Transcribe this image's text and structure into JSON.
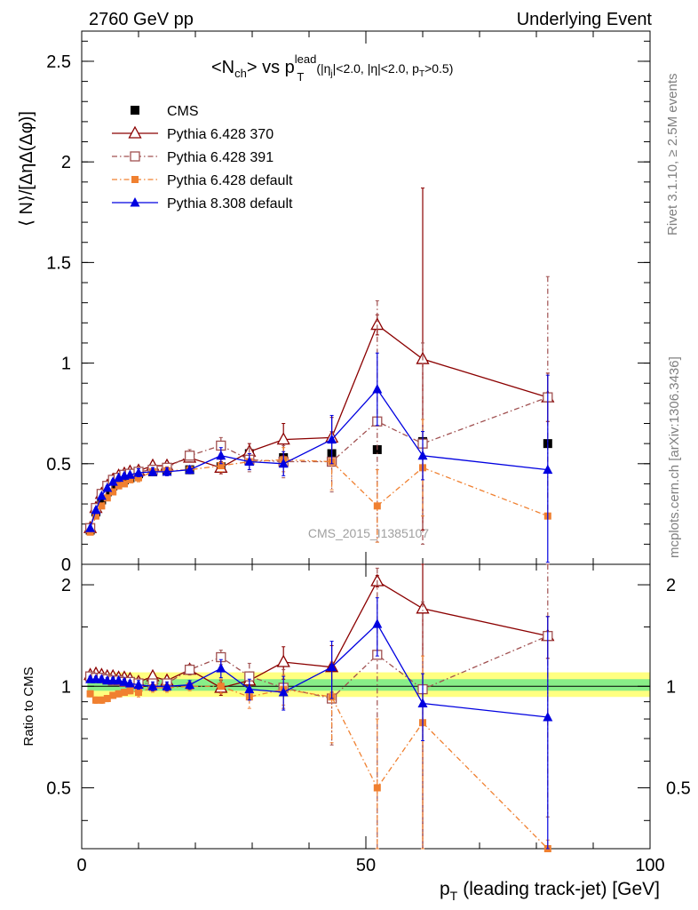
{
  "header": {
    "left": "2760 GeV pp",
    "right": "Underlying Event"
  },
  "side_labels": {
    "top": "Rivet 3.1.10, ≥ 2.5M events",
    "bottom": "mcplots.cern.ch [arXiv:1306.3436]"
  },
  "watermark": "CMS_2015_I1385107",
  "plot_title": {
    "main": "<N",
    "main_sub": "ch",
    "main_mid": "> vs p",
    "main_sup": "lead",
    "main_sub2": "T",
    "cuts": "(|η",
    "cuts_sub": "j",
    "cuts_mid": "|<2.0, |η|<2.0, p",
    "cuts_sub2": "T",
    "cuts_end": ">0.5)"
  },
  "chart_data": [
    {
      "type": "scatter",
      "panel": "main",
      "ylabel": "⟨ N⟩/[ΔηΔ(Δφ)]",
      "xlim": [
        0,
        100
      ],
      "ylim": [
        0,
        2.65
      ],
      "yticks": [
        0,
        0.5,
        1,
        1.5,
        2,
        2.5
      ],
      "ytick_labels": [
        "0",
        "0.5",
        "1",
        "1.5",
        "2",
        "2.5"
      ],
      "legend_position": "top-left",
      "series": [
        {
          "name": "CMS",
          "color": "#000000",
          "marker": "square",
          "line": "none",
          "x": [
            1.5,
            2.5,
            3.5,
            4.5,
            5.5,
            6.5,
            7.5,
            8.5,
            10,
            12.5,
            15,
            19,
            24.5,
            29.5,
            35.5,
            44,
            52,
            60,
            82
          ],
          "y": [
            0.17,
            0.26,
            0.32,
            0.36,
            0.39,
            0.41,
            0.42,
            0.43,
            0.45,
            0.46,
            0.465,
            0.47,
            0.485,
            0.55,
            0.53,
            0.55,
            0.57,
            0.61,
            0.6
          ]
        },
        {
          "name": "Pythia 6.428 370",
          "color": "#8b0000",
          "marker": "triangle-open",
          "line": "solid",
          "x": [
            1.5,
            2.5,
            3.5,
            4.5,
            5.5,
            6.5,
            7.5,
            8.5,
            10,
            12.5,
            15,
            19,
            24.5,
            29.5,
            35.5,
            44,
            52,
            60,
            82
          ],
          "y": [
            0.18,
            0.28,
            0.35,
            0.39,
            0.42,
            0.44,
            0.45,
            0.46,
            0.465,
            0.49,
            0.49,
            0.53,
            0.48,
            0.56,
            0.62,
            0.63,
            1.19,
            1.02,
            0.83
          ],
          "err": [
            0.01,
            0.01,
            0.01,
            0.01,
            0.01,
            0.01,
            0.01,
            0.01,
            0.02,
            0.02,
            0.02,
            0.02,
            0.03,
            0.04,
            0.08,
            0.1,
            0.05,
            0.85,
            0.12
          ]
        },
        {
          "name": "Pythia 6.428 391",
          "color": "#a05050",
          "marker": "square-open",
          "line": "dashdot",
          "x": [
            1.5,
            2.5,
            3.5,
            4.5,
            5.5,
            6.5,
            7.5,
            8.5,
            10,
            12.5,
            15,
            19,
            24.5,
            29.5,
            35.5,
            44,
            52,
            60,
            82
          ],
          "y": [
            0.18,
            0.28,
            0.35,
            0.39,
            0.42,
            0.43,
            0.445,
            0.45,
            0.46,
            0.47,
            0.48,
            0.54,
            0.59,
            0.52,
            0.51,
            0.51,
            0.71,
            0.6,
            0.83
          ],
          "err": [
            0.01,
            0.01,
            0.01,
            0.01,
            0.01,
            0.01,
            0.01,
            0.01,
            0.02,
            0.02,
            0.02,
            0.03,
            0.04,
            0.06,
            0.08,
            0.15,
            0.6,
            0.5,
            0.6
          ]
        },
        {
          "name": "Pythia 6.428 default",
          "color": "#f08030",
          "marker": "square-filled",
          "line": "dashdot",
          "x": [
            1.5,
            2.5,
            3.5,
            4.5,
            5.5,
            6.5,
            7.5,
            8.5,
            10,
            12.5,
            15,
            19,
            24.5,
            29.5,
            35.5,
            44,
            52,
            60,
            82
          ],
          "y": [
            0.16,
            0.24,
            0.29,
            0.33,
            0.36,
            0.39,
            0.4,
            0.42,
            0.43,
            0.46,
            0.465,
            0.47,
            0.49,
            0.51,
            0.52,
            0.51,
            0.29,
            0.48,
            0.24
          ],
          "err": [
            0.01,
            0.01,
            0.01,
            0.01,
            0.01,
            0.01,
            0.01,
            0.01,
            0.02,
            0.02,
            0.02,
            0.02,
            0.03,
            0.04,
            0.06,
            0.14,
            0.18,
            0.24,
            0.01
          ]
        },
        {
          "name": "Pythia 8.308 default",
          "color": "#0000e0",
          "marker": "triangle-filled",
          "line": "solid",
          "x": [
            1.5,
            2.5,
            3.5,
            4.5,
            5.5,
            6.5,
            7.5,
            8.5,
            10,
            12.5,
            15,
            19,
            24.5,
            29.5,
            35.5,
            44,
            52,
            60,
            82
          ],
          "y": [
            0.18,
            0.27,
            0.34,
            0.38,
            0.41,
            0.43,
            0.44,
            0.445,
            0.455,
            0.46,
            0.46,
            0.47,
            0.54,
            0.51,
            0.5,
            0.62,
            0.87,
            0.54,
            0.47
          ],
          "err": [
            0.01,
            0.01,
            0.01,
            0.01,
            0.01,
            0.01,
            0.01,
            0.01,
            0.02,
            0.02,
            0.02,
            0.02,
            0.04,
            0.04,
            0.06,
            0.12,
            0.18,
            0.12,
            0.47
          ]
        }
      ]
    },
    {
      "type": "scatter",
      "panel": "ratio",
      "xlabel": "p",
      "xlabel_sub": "T",
      "xlabel_rest": "(leading track-jet) [GeV]",
      "ylabel": "Ratio to CMS",
      "xlim": [
        0,
        100
      ],
      "ylim": [
        0.33,
        2.3
      ],
      "xticks": [
        0,
        50,
        100
      ],
      "xtick_labels": [
        "0",
        "50",
        "100"
      ],
      "yticks": [
        0.5,
        1,
        2
      ],
      "ytick_labels": [
        "0.5",
        "1",
        "2"
      ],
      "bands": [
        {
          "name": "outer",
          "color": "#ffff80",
          "lo": 0.93,
          "hi": 1.1
        },
        {
          "name": "inner",
          "color": "#88ee88",
          "lo": 0.97,
          "hi": 1.05
        }
      ],
      "series": [
        {
          "name": "Pythia 6.428 370",
          "color": "#8b0000",
          "marker": "triangle-open",
          "line": "solid",
          "x": [
            1.5,
            2.5,
            3.5,
            4.5,
            5.5,
            6.5,
            7.5,
            8.5,
            10,
            12.5,
            15,
            19,
            24.5,
            29.5,
            35.5,
            44,
            52,
            60,
            82
          ],
          "y": [
            1.08,
            1.09,
            1.08,
            1.07,
            1.07,
            1.06,
            1.06,
            1.05,
            1.03,
            1.07,
            1.04,
            1.12,
            0.99,
            1.04,
            1.18,
            1.14,
            2.05,
            1.7,
            1.41
          ],
          "err": [
            0.02,
            0.02,
            0.02,
            0.02,
            0.02,
            0.02,
            0.02,
            0.02,
            0.03,
            0.03,
            0.03,
            0.03,
            0.05,
            0.06,
            0.13,
            0.18,
            0.08,
            1.5,
            0.2
          ]
        },
        {
          "name": "Pythia 6.428 391",
          "color": "#a05050",
          "marker": "square-open",
          "line": "dashdot",
          "x": [
            1.5,
            2.5,
            3.5,
            4.5,
            5.5,
            6.5,
            7.5,
            8.5,
            10,
            12.5,
            15,
            19,
            24.5,
            29.5,
            35.5,
            44,
            52,
            60,
            82
          ],
          "y": [
            1.07,
            1.06,
            1.06,
            1.05,
            1.04,
            1.04,
            1.03,
            1.03,
            1.02,
            1.02,
            1.02,
            1.12,
            1.22,
            1.07,
            0.99,
            0.92,
            1.24,
            0.98,
            1.41
          ],
          "err": [
            0.02,
            0.02,
            0.02,
            0.02,
            0.02,
            0.02,
            0.02,
            0.02,
            0.03,
            0.03,
            0.03,
            0.04,
            0.06,
            0.1,
            0.13,
            0.25,
            1.0,
            0.8,
            1.0
          ]
        },
        {
          "name": "Pythia 6.428 default",
          "color": "#f08030",
          "marker": "square-filled",
          "line": "dashdot",
          "x": [
            1.5,
            2.5,
            3.5,
            4.5,
            5.5,
            6.5,
            7.5,
            8.5,
            10,
            12.5,
            15,
            19,
            24.5,
            29.5,
            35.5,
            44,
            52,
            60,
            82
          ],
          "y": [
            0.95,
            0.91,
            0.91,
            0.92,
            0.94,
            0.95,
            0.96,
            0.97,
            0.96,
            0.99,
            0.99,
            1.0,
            1.0,
            0.93,
            0.98,
            0.93,
            0.5,
            0.78,
            0.33
          ],
          "err": [
            0.02,
            0.02,
            0.02,
            0.02,
            0.02,
            0.02,
            0.02,
            0.02,
            0.03,
            0.03,
            0.03,
            0.03,
            0.05,
            0.07,
            0.1,
            0.25,
            0.3,
            0.45,
            0.02
          ]
        },
        {
          "name": "Pythia 8.308 default",
          "color": "#0000e0",
          "marker": "triangle-filled",
          "line": "solid",
          "x": [
            1.5,
            2.5,
            3.5,
            4.5,
            5.5,
            6.5,
            7.5,
            8.5,
            10,
            12.5,
            15,
            19,
            24.5,
            29.5,
            35.5,
            44,
            52,
            60,
            82
          ],
          "y": [
            1.05,
            1.05,
            1.05,
            1.04,
            1.04,
            1.04,
            1.03,
            1.02,
            1.01,
            1.0,
            1.0,
            1.01,
            1.13,
            0.98,
            0.96,
            1.14,
            1.53,
            0.89,
            0.81
          ],
          "err": [
            0.02,
            0.02,
            0.02,
            0.02,
            0.02,
            0.02,
            0.02,
            0.02,
            0.03,
            0.03,
            0.03,
            0.03,
            0.07,
            0.07,
            0.11,
            0.22,
            0.3,
            0.2,
            0.8
          ]
        }
      ]
    }
  ]
}
